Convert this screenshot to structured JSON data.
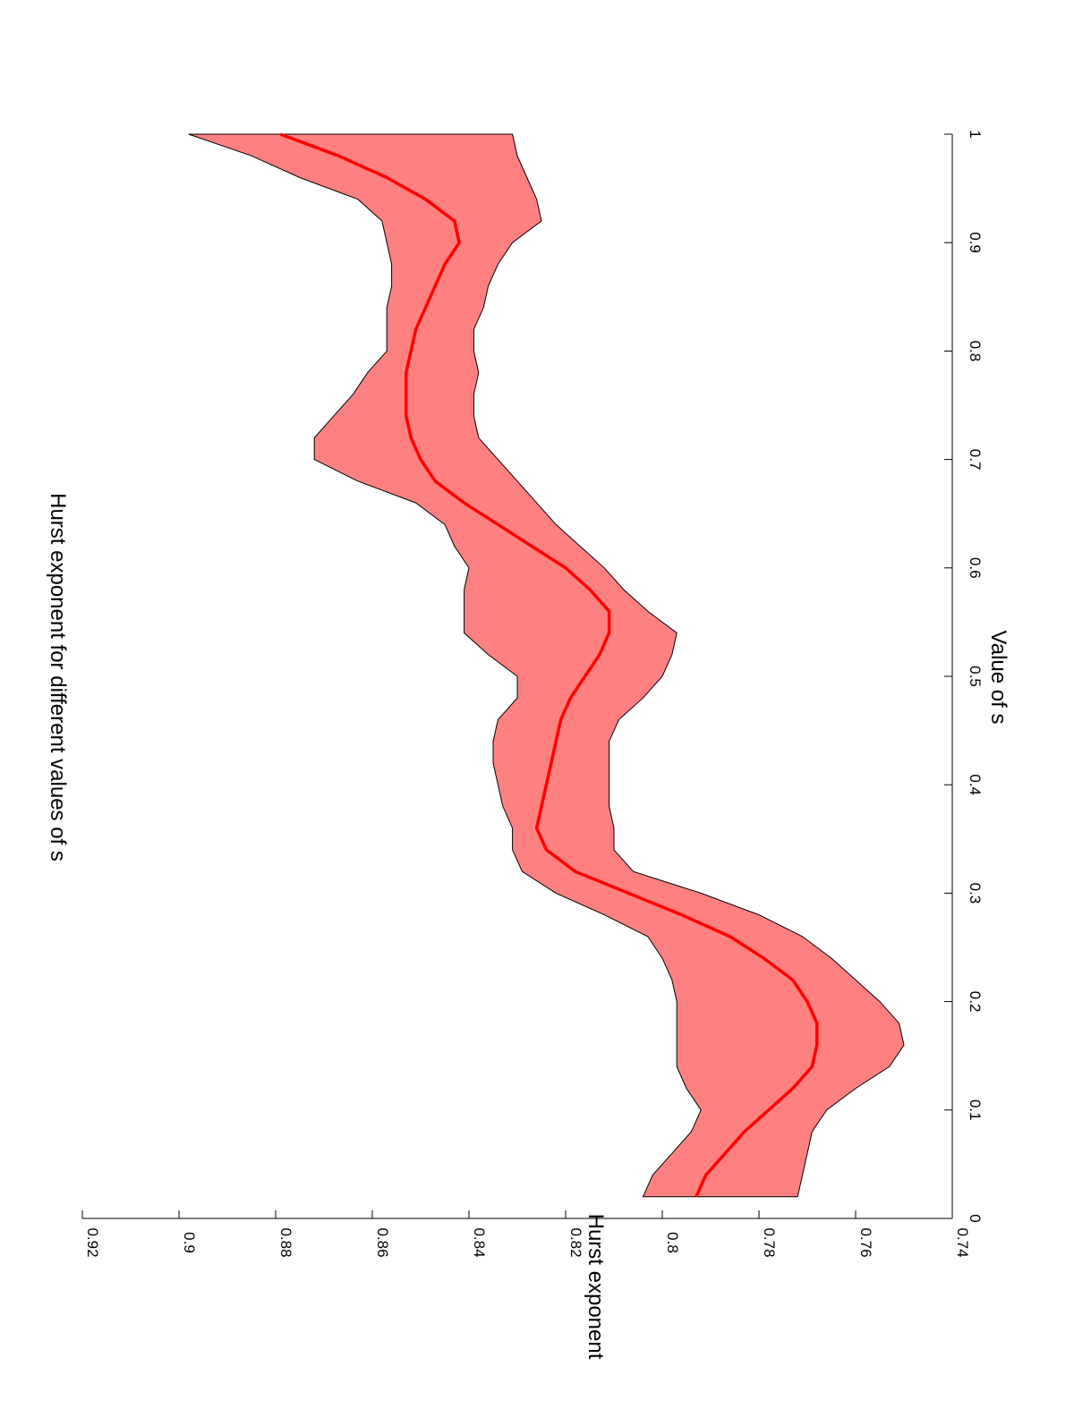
{
  "chart_data": {
    "type": "area",
    "orientation": "rotated-90-clockwise",
    "title": "Hurst exponent for different values of s",
    "xlabel": "Value of s",
    "ylabel": "Hurst exponent",
    "xlim": [
      0,
      1
    ],
    "ylim": [
      0.74,
      0.92
    ],
    "xticks": [
      "0",
      "0.1",
      "0.2",
      "0.3",
      "0.4",
      "0.5",
      "0.6",
      "0.7",
      "0.8",
      "0.9",
      "1"
    ],
    "yticks": [
      "0.74",
      "0.76",
      "0.78",
      "0.8",
      "0.82",
      "0.84",
      "0.86",
      "0.88",
      "0.9",
      "0.92"
    ],
    "grid": false,
    "colors": {
      "band_fill": "#ff8080",
      "band_edge": "#000000",
      "mean_line": "#ff0000"
    },
    "x": [
      0.02,
      0.04,
      0.06,
      0.08,
      0.1,
      0.12,
      0.14,
      0.16,
      0.18,
      0.2,
      0.22,
      0.24,
      0.26,
      0.28,
      0.3,
      0.32,
      0.34,
      0.36,
      0.38,
      0.4,
      0.42,
      0.44,
      0.46,
      0.48,
      0.5,
      0.52,
      0.54,
      0.56,
      0.58,
      0.6,
      0.62,
      0.64,
      0.66,
      0.68,
      0.7,
      0.72,
      0.74,
      0.76,
      0.78,
      0.8,
      0.82,
      0.84,
      0.86,
      0.88,
      0.9,
      0.92,
      0.94,
      0.96,
      0.98,
      1.0
    ],
    "series": [
      {
        "role": "upper",
        "values": [
          0.804,
          0.802,
          0.798,
          0.794,
          0.792,
          0.795,
          0.797,
          0.797,
          0.797,
          0.797,
          0.798,
          0.8,
          0.803,
          0.812,
          0.822,
          0.829,
          0.831,
          0.831,
          0.833,
          0.834,
          0.835,
          0.835,
          0.834,
          0.83,
          0.83,
          0.836,
          0.841,
          0.841,
          0.841,
          0.84,
          0.843,
          0.845,
          0.851,
          0.863,
          0.872,
          0.872,
          0.868,
          0.864,
          0.861,
          0.857,
          0.857,
          0.857,
          0.856,
          0.856,
          0.857,
          0.858,
          0.863,
          0.875,
          0.885,
          0.898
        ]
      },
      {
        "role": "lower",
        "values": [
          0.772,
          0.771,
          0.77,
          0.769,
          0.766,
          0.76,
          0.753,
          0.75,
          0.751,
          0.755,
          0.76,
          0.765,
          0.771,
          0.78,
          0.792,
          0.806,
          0.81,
          0.81,
          0.811,
          0.811,
          0.811,
          0.811,
          0.809,
          0.804,
          0.8,
          0.798,
          0.797,
          0.803,
          0.808,
          0.812,
          0.817,
          0.822,
          0.826,
          0.83,
          0.834,
          0.838,
          0.839,
          0.839,
          0.838,
          0.839,
          0.839,
          0.837,
          0.836,
          0.834,
          0.831,
          0.825,
          0.826,
          0.828,
          0.83,
          0.831
        ]
      },
      {
        "role": "mean",
        "values": [
          0.793,
          0.791,
          0.787,
          0.783,
          0.778,
          0.773,
          0.769,
          0.768,
          0.768,
          0.77,
          0.773,
          0.779,
          0.786,
          0.796,
          0.807,
          0.818,
          0.824,
          0.826,
          0.825,
          0.824,
          0.823,
          0.822,
          0.821,
          0.819,
          0.816,
          0.813,
          0.811,
          0.811,
          0.815,
          0.82,
          0.827,
          0.834,
          0.841,
          0.847,
          0.85,
          0.852,
          0.853,
          0.853,
          0.853,
          0.852,
          0.851,
          0.849,
          0.847,
          0.845,
          0.842,
          0.843,
          0.849,
          0.857,
          0.867,
          0.879
        ]
      }
    ]
  }
}
